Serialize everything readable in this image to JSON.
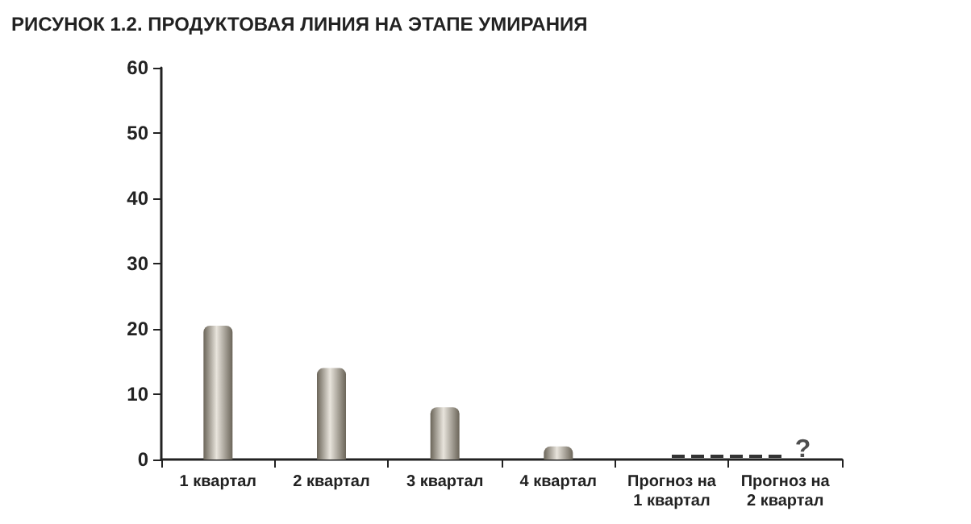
{
  "chart_data": {
    "type": "bar",
    "title": "РИСУНОК 1.2. ПРОДУКТОВАЯ ЛИНИЯ НА ЭТАПЕ УМИРАНИЯ",
    "categories": [
      "1 квартал",
      "2 квартал",
      "3 квартал",
      "4 квартал",
      "Прогноз на 1 квартал",
      "Прогноз на 2 квартал"
    ],
    "series": [
      {
        "color": "#6b6559",
        "values": [
          20.5,
          14,
          8,
          2,
          null,
          null
        ]
      },
      {
        "type": "line",
        "color": "#333333",
        "line_style": "dashed",
        "marker": "none",
        "values": [
          null,
          null,
          null,
          null,
          0.5,
          0.5
        ]
      }
    ],
    "annotations": [
      {
        "text": "?",
        "x": "Прогноз на 2 квартал",
        "y": 0.5
      }
    ],
    "ylim": [
      0,
      60
    ],
    "yticks": [
      0,
      10,
      20,
      30,
      40,
      50,
      60
    ],
    "grid": false
  }
}
